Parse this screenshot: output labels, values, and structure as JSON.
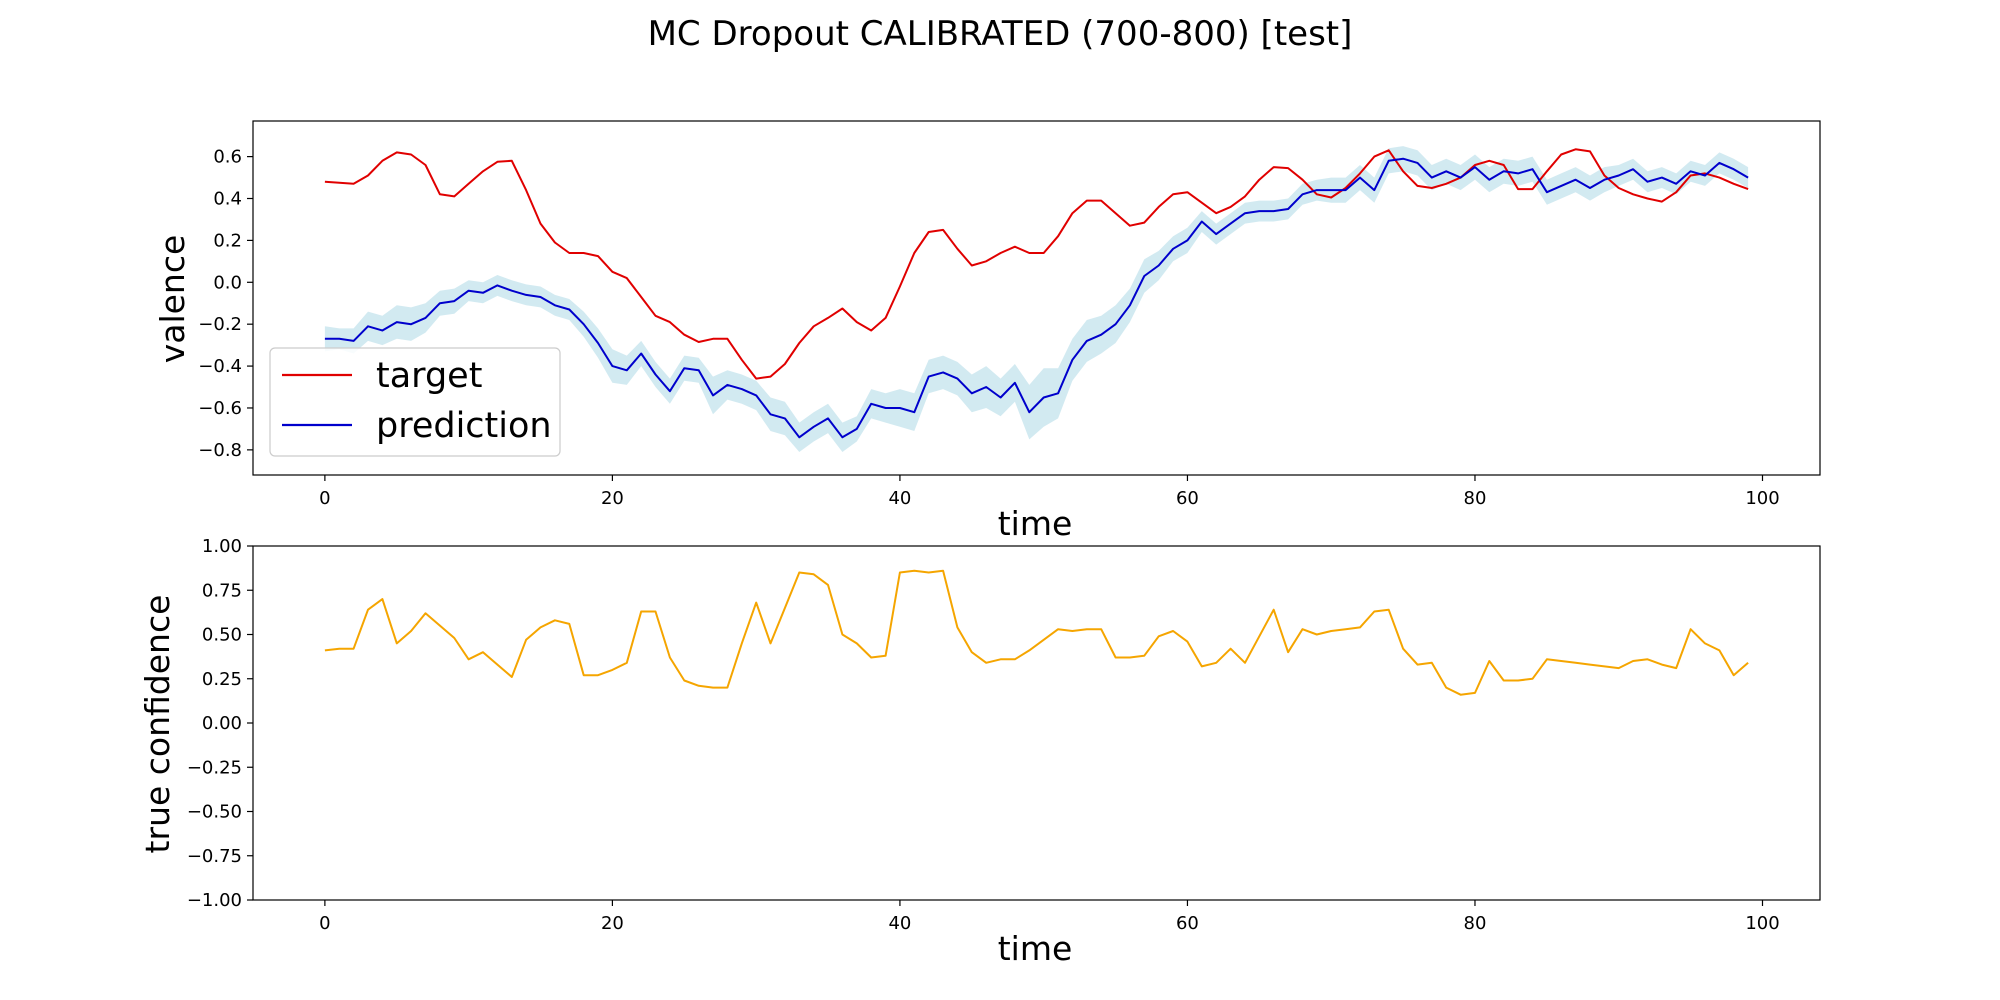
{
  "title": "MC Dropout CALIBRATED (700-800) [test]",
  "colors": {
    "target": "#e00000",
    "prediction": "#0000cc",
    "band": "#add8e6",
    "confidence": "#f5a500"
  },
  "chart_data": [
    {
      "type": "line",
      "xlabel": "time",
      "ylabel": "valence",
      "xlim": [
        -5,
        104
      ],
      "ylim": [
        -0.92,
        0.77
      ],
      "xticks": [
        0,
        20,
        40,
        60,
        80,
        100
      ],
      "xtick_labels": [
        "0",
        "20",
        "40",
        "60",
        "80",
        "100"
      ],
      "yticks": [
        0.6,
        0.4,
        0.2,
        0.0,
        -0.2,
        -0.4,
        -0.6,
        -0.8
      ],
      "ytick_labels": [
        "0.6",
        "0.4",
        "0.2",
        "0.0",
        "−0.2",
        "−0.4",
        "−0.6",
        "−0.8"
      ],
      "grid": false,
      "legend_position": "lower-left",
      "series": [
        {
          "name": "target",
          "color": "#e00000",
          "values": [
            0.48,
            0.475,
            0.47,
            0.51,
            0.58,
            0.62,
            0.61,
            0.56,
            0.42,
            0.41,
            0.47,
            0.53,
            0.575,
            0.58,
            0.44,
            0.28,
            0.19,
            0.14,
            0.14,
            0.125,
            0.05,
            0.02,
            -0.07,
            -0.16,
            -0.19,
            -0.25,
            -0.285,
            -0.27,
            -0.27,
            -0.37,
            -0.46,
            -0.45,
            -0.39,
            -0.29,
            -0.21,
            -0.17,
            -0.125,
            -0.19,
            -0.23,
            -0.17,
            -0.02,
            0.14,
            0.24,
            0.25,
            0.16,
            0.08,
            0.1,
            0.14,
            0.17,
            0.14,
            0.14,
            0.22,
            0.33,
            0.39,
            0.39,
            0.33,
            0.27,
            0.285,
            0.36,
            0.42,
            0.43,
            0.38,
            0.33,
            0.36,
            0.41,
            0.49,
            0.55,
            0.545,
            0.49,
            0.42,
            0.405,
            0.45,
            0.52,
            0.6,
            0.63,
            0.53,
            0.46,
            0.45,
            0.47,
            0.5,
            0.56,
            0.58,
            0.56,
            0.445,
            0.445,
            0.53,
            0.61,
            0.635,
            0.625,
            0.51,
            0.45,
            0.42,
            0.4,
            0.385,
            0.43,
            0.51,
            0.52,
            0.5,
            0.47,
            0.445
          ]
        },
        {
          "name": "prediction",
          "color": "#0000cc",
          "values": [
            -0.27,
            -0.27,
            -0.28,
            -0.21,
            -0.23,
            -0.19,
            -0.2,
            -0.17,
            -0.1,
            -0.09,
            -0.04,
            -0.05,
            -0.015,
            -0.04,
            -0.06,
            -0.07,
            -0.11,
            -0.13,
            -0.2,
            -0.29,
            -0.4,
            -0.42,
            -0.34,
            -0.44,
            -0.52,
            -0.41,
            -0.42,
            -0.54,
            -0.49,
            -0.51,
            -0.54,
            -0.63,
            -0.65,
            -0.74,
            -0.69,
            -0.65,
            -0.74,
            -0.7,
            -0.58,
            -0.6,
            -0.6,
            -0.62,
            -0.45,
            -0.43,
            -0.46,
            -0.53,
            -0.5,
            -0.55,
            -0.48,
            -0.62,
            -0.55,
            -0.53,
            -0.37,
            -0.28,
            -0.25,
            -0.2,
            -0.11,
            0.03,
            0.08,
            0.16,
            0.2,
            0.29,
            0.23,
            0.28,
            0.33,
            0.34,
            0.34,
            0.35,
            0.42,
            0.44,
            0.44,
            0.44,
            0.5,
            0.44,
            0.58,
            0.59,
            0.57,
            0.5,
            0.53,
            0.5,
            0.55,
            0.49,
            0.53,
            0.52,
            0.54,
            0.43,
            0.46,
            0.49,
            0.45,
            0.49,
            0.51,
            0.54,
            0.48,
            0.5,
            0.47,
            0.53,
            0.51,
            0.57,
            0.54,
            0.5
          ]
        }
      ],
      "band": {
        "color": "#add8e6",
        "half_width": [
          0.06,
          0.05,
          0.06,
          0.07,
          0.07,
          0.08,
          0.08,
          0.07,
          0.06,
          0.06,
          0.05,
          0.05,
          0.05,
          0.05,
          0.05,
          0.05,
          0.05,
          0.05,
          0.06,
          0.07,
          0.08,
          0.07,
          0.06,
          0.06,
          0.06,
          0.06,
          0.06,
          0.09,
          0.07,
          0.07,
          0.07,
          0.08,
          0.08,
          0.07,
          0.07,
          0.07,
          0.07,
          0.06,
          0.07,
          0.07,
          0.09,
          0.09,
          0.08,
          0.08,
          0.08,
          0.09,
          0.1,
          0.09,
          0.09,
          0.13,
          0.14,
          0.12,
          0.1,
          0.1,
          0.09,
          0.09,
          0.08,
          0.08,
          0.07,
          0.06,
          0.06,
          0.05,
          0.05,
          0.05,
          0.05,
          0.05,
          0.05,
          0.05,
          0.05,
          0.05,
          0.06,
          0.06,
          0.06,
          0.06,
          0.06,
          0.06,
          0.06,
          0.06,
          0.06,
          0.06,
          0.06,
          0.06,
          0.06,
          0.06,
          0.06,
          0.06,
          0.06,
          0.06,
          0.06,
          0.06,
          0.05,
          0.05,
          0.05,
          0.05,
          0.05,
          0.05,
          0.05,
          0.05,
          0.05,
          0.05
        ]
      }
    },
    {
      "type": "line",
      "xlabel": "time",
      "ylabel": "true confidence",
      "xlim": [
        -5,
        104
      ],
      "ylim": [
        -1.0,
        1.0
      ],
      "xticks": [
        0,
        20,
        40,
        60,
        80,
        100
      ],
      "xtick_labels": [
        "0",
        "20",
        "40",
        "60",
        "80",
        "100"
      ],
      "yticks": [
        1.0,
        0.75,
        0.5,
        0.25,
        0.0,
        -0.25,
        -0.5,
        -0.75,
        -1.0
      ],
      "ytick_labels": [
        "1.00",
        "0.75",
        "0.50",
        "0.25",
        "0.00",
        "−0.25",
        "−0.50",
        "−0.75",
        "−1.00"
      ],
      "grid": false,
      "series": [
        {
          "color": "#f5a500",
          "values": [
            0.41,
            0.42,
            0.42,
            0.64,
            0.7,
            0.45,
            0.52,
            0.62,
            0.55,
            0.48,
            0.36,
            0.4,
            0.33,
            0.26,
            0.47,
            0.54,
            0.58,
            0.56,
            0.27,
            0.27,
            0.3,
            0.34,
            0.63,
            0.63,
            0.37,
            0.24,
            0.21,
            0.2,
            0.2,
            0.45,
            0.68,
            0.45,
            0.65,
            0.85,
            0.84,
            0.78,
            0.5,
            0.45,
            0.37,
            0.38,
            0.85,
            0.86,
            0.85,
            0.86,
            0.54,
            0.4,
            0.34,
            0.36,
            0.36,
            0.41,
            0.47,
            0.53,
            0.52,
            0.53,
            0.53,
            0.37,
            0.37,
            0.38,
            0.49,
            0.52,
            0.46,
            0.32,
            0.34,
            0.42,
            0.34,
            0.49,
            0.64,
            0.4,
            0.53,
            0.5,
            0.52,
            0.53,
            0.54,
            0.63,
            0.64,
            0.42,
            0.33,
            0.34,
            0.2,
            0.16,
            0.17,
            0.35,
            0.24,
            0.24,
            0.25,
            0.36,
            0.35,
            0.34,
            0.33,
            0.32,
            0.31,
            0.35,
            0.36,
            0.33,
            0.31,
            0.53,
            0.45,
            0.41,
            0.27,
            0.34
          ]
        }
      ]
    }
  ]
}
